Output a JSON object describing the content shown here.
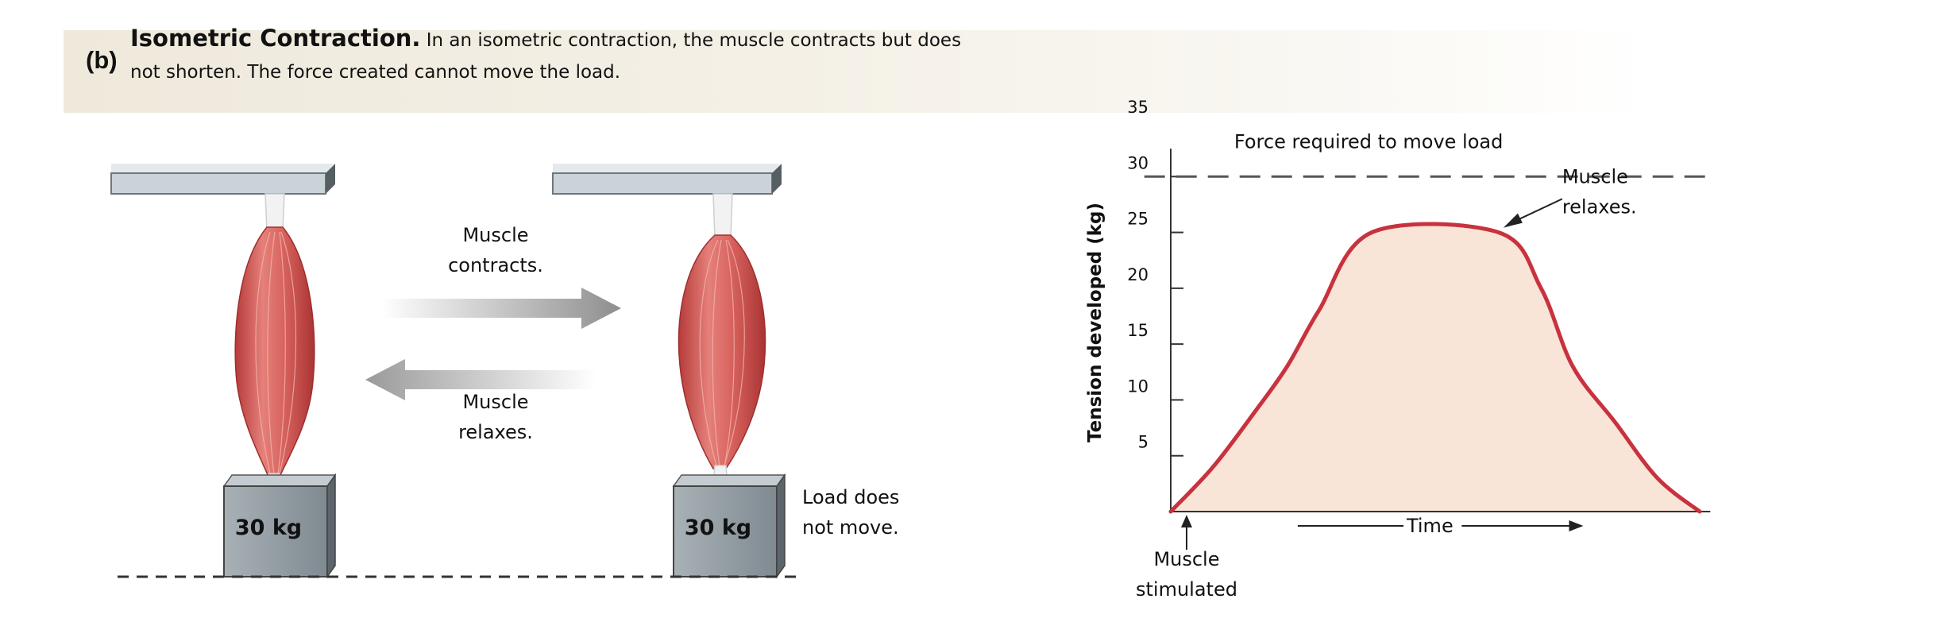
{
  "header": {
    "panel_letter": "(b)",
    "title": "Isometric Contraction.",
    "description": "In an isometric contraction, the muscle contracts but does not shorten. The force created cannot move the load."
  },
  "illustration": {
    "load_left": "30 kg",
    "load_right": "30 kg",
    "arrow_contracts_line1": "Muscle",
    "arrow_contracts_line2": "contracts.",
    "arrow_relaxes_line1": "Muscle",
    "arrow_relaxes_line2": "relaxes.",
    "load_note_line1": "Load does",
    "load_note_line2": "not move.",
    "colors": {
      "muscle": "#d9645f",
      "muscle_dark": "#b63b3a",
      "tendon": "#f2f2f2",
      "bar": "#c9d3d8",
      "block": "#8a959c"
    }
  },
  "chart_data": {
    "type": "area",
    "title": "",
    "xlabel": "Time",
    "ylabel": "Tension developed (kg)",
    "yticks": [
      5,
      10,
      15,
      20,
      25,
      30,
      35
    ],
    "ylim": [
      0,
      35
    ],
    "xlim": [
      0,
      100
    ],
    "x": [
      0,
      8,
      16,
      22,
      28,
      38,
      62,
      70,
      76,
      84,
      92,
      100
    ],
    "y": [
      0,
      4,
      9,
      13,
      18,
      25,
      25,
      20,
      13,
      8,
      3,
      0
    ],
    "threshold": {
      "value": 30,
      "label": "Force required to move load"
    },
    "annotations": {
      "stimulated_line1": "Muscle",
      "stimulated_line2": "stimulated",
      "relaxes_line1": "Muscle",
      "relaxes_line2": "relaxes."
    },
    "colors": {
      "line": "#c8323e",
      "fill": "#f9e4d8",
      "threshold": "#555555"
    }
  }
}
